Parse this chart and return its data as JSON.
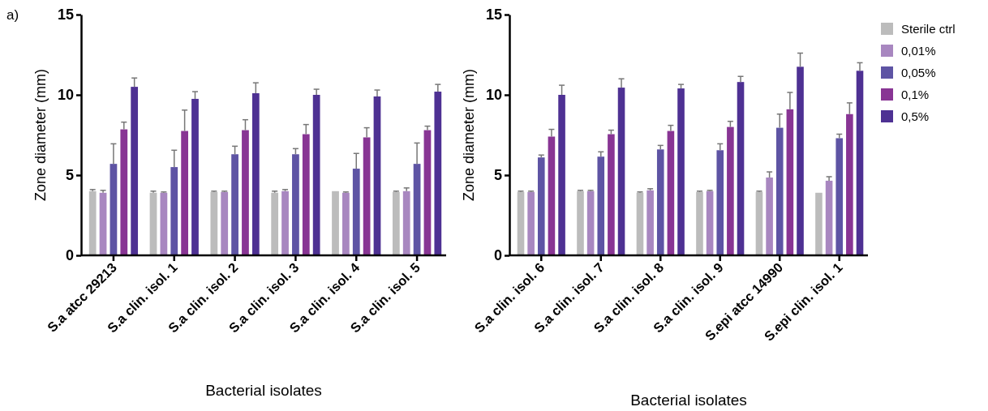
{
  "chart_data": [
    {
      "type": "bar",
      "annotations": [
        "a)"
      ],
      "xlabel": "Bacterial isolates",
      "ylabel": "Zone diameter (mm)",
      "categories": [
        "S.a atcc 29213",
        "S.a clin. isol. 1",
        "S.a clin. isol. 2",
        "S.a clin. isol. 3",
        "S.a clin. isol. 4",
        "S.a clin. isol. 5"
      ],
      "ylim": [
        0,
        15
      ],
      "yticks": [
        0,
        5,
        10,
        15
      ],
      "grid": false,
      "legend": false,
      "series": [
        {
          "color": "#bcbcbc",
          "values": [
            4.0,
            3.9,
            3.95,
            3.9,
            4.0,
            3.95
          ],
          "errors": [
            [
              4.0,
              4.1
            ],
            [
              3.9,
              4.0
            ],
            [
              3.95,
              4.0
            ],
            [
              3.9,
              4.0
            ],
            null,
            [
              3.95,
              4.0
            ]
          ]
        },
        {
          "color": "#a887c0",
          "values": [
            3.9,
            3.9,
            3.95,
            4.0,
            3.9,
            4.0
          ],
          "errors": [
            [
              3.9,
              4.05
            ],
            [
              3.9,
              3.95
            ],
            [
              3.95,
              4.0
            ],
            [
              4.0,
              4.1
            ],
            [
              3.9,
              3.95
            ],
            [
              4.0,
              4.2
            ]
          ]
        },
        {
          "color": "#5e54a4",
          "values": [
            5.7,
            5.5,
            6.3,
            6.3,
            5.4,
            5.7
          ],
          "errors": [
            [
              5.7,
              6.95
            ],
            [
              5.5,
              6.55
            ],
            [
              6.3,
              6.8
            ],
            [
              6.3,
              6.65
            ],
            [
              5.4,
              6.35
            ],
            [
              5.7,
              7.0
            ]
          ]
        },
        {
          "color": "#883594",
          "values": [
            7.85,
            7.75,
            7.8,
            7.55,
            7.35,
            7.8
          ],
          "errors": [
            [
              7.85,
              8.3
            ],
            [
              7.75,
              9.05
            ],
            [
              7.8,
              8.45
            ],
            [
              7.55,
              8.15
            ],
            [
              7.35,
              7.95
            ],
            [
              7.8,
              8.05
            ]
          ]
        },
        {
          "color": "#4e3193",
          "values": [
            10.5,
            9.75,
            10.1,
            10.0,
            9.9,
            10.2
          ],
          "errors": [
            [
              10.5,
              11.05
            ],
            [
              9.75,
              10.2
            ],
            [
              10.1,
              10.75
            ],
            [
              10.0,
              10.35
            ],
            [
              9.9,
              10.3
            ],
            [
              10.2,
              10.65
            ]
          ]
        }
      ]
    },
    {
      "type": "bar",
      "xlabel": "Bacterial isolates",
      "ylabel": "Zone diameter (mm)",
      "categories": [
        "S.a clin. isol. 6",
        "S.a clin. isol. 7",
        "S.a clin. isol. 8",
        "S.a clin. isol. 9",
        "S.epi atcc 14990",
        "S.epi clin. isol. 1"
      ],
      "ylim": [
        0,
        15
      ],
      "yticks": [
        0,
        5,
        10,
        15
      ],
      "grid": false,
      "legend": "right",
      "series": [
        {
          "name": "Sterile ctrl",
          "color": "#bcbcbc",
          "values": [
            3.95,
            4.0,
            3.9,
            3.95,
            3.95,
            3.9
          ],
          "errors": [
            [
              3.95,
              4.0
            ],
            [
              4.0,
              4.05
            ],
            [
              3.9,
              3.95
            ],
            [
              3.95,
              4.0
            ],
            [
              3.95,
              4.0
            ],
            null
          ]
        },
        {
          "name": "0,01%",
          "color": "#a887c0",
          "values": [
            3.95,
            4.0,
            4.05,
            4.0,
            4.85,
            4.65
          ],
          "errors": [
            [
              3.95,
              4.0
            ],
            [
              4.0,
              4.05
            ],
            [
              4.05,
              4.15
            ],
            [
              4.0,
              4.05
            ],
            [
              4.85,
              5.2
            ],
            [
              4.65,
              4.9
            ]
          ]
        },
        {
          "name": "0,05%",
          "color": "#5e54a4",
          "values": [
            6.1,
            6.15,
            6.6,
            6.55,
            7.95,
            7.3
          ],
          "errors": [
            [
              6.1,
              6.25
            ],
            [
              6.15,
              6.45
            ],
            [
              6.6,
              6.85
            ],
            [
              6.55,
              6.95
            ],
            [
              7.95,
              8.8
            ],
            [
              7.3,
              7.55
            ]
          ]
        },
        {
          "name": "0,1%",
          "color": "#883594",
          "values": [
            7.4,
            7.55,
            7.75,
            8.0,
            9.1,
            8.8
          ],
          "errors": [
            [
              7.4,
              7.85
            ],
            [
              7.55,
              7.8
            ],
            [
              7.75,
              8.1
            ],
            [
              8.0,
              8.35
            ],
            [
              9.1,
              10.15
            ],
            [
              8.8,
              9.5
            ]
          ]
        },
        {
          "name": "0,5%",
          "color": "#4e3193",
          "values": [
            10.0,
            10.45,
            10.4,
            10.8,
            11.75,
            11.5
          ],
          "errors": [
            [
              10.0,
              10.6
            ],
            [
              10.45,
              11.0
            ],
            [
              10.4,
              10.65
            ],
            [
              10.8,
              11.15
            ],
            [
              11.75,
              12.6
            ],
            [
              11.5,
              12.0
            ]
          ]
        }
      ]
    }
  ]
}
